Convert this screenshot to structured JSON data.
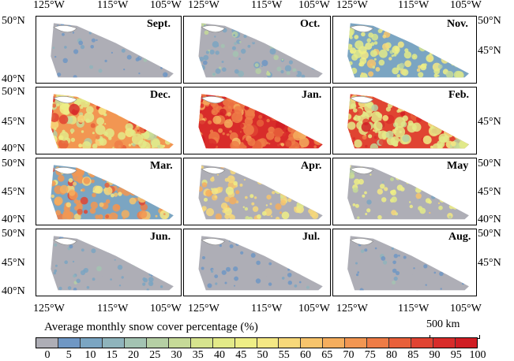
{
  "axes": {
    "top_lon_ticks": [
      "125°W",
      "115°W",
      "105°W"
    ],
    "bottom_lon_ticks": [
      "125°W",
      "115°W",
      "105°W"
    ],
    "lat_ticks": [
      "50°N",
      "45°N",
      "40°N"
    ]
  },
  "panels": [
    {
      "month": "Sept.",
      "dominant_class": 0,
      "texture_class": 1,
      "intensity": 0.05
    },
    {
      "month": "Oct.",
      "dominant_class": 0,
      "texture_class": 2,
      "intensity": 0.25
    },
    {
      "month": "Nov.",
      "dominant_class": 2,
      "texture_class": 8,
      "intensity": 0.55
    },
    {
      "month": "Dec.",
      "dominant_class": 14,
      "texture_class": 8,
      "intensity": 0.85
    },
    {
      "month": "Jan.",
      "dominant_class": 18,
      "texture_class": 15,
      "intensity": 0.95
    },
    {
      "month": "Feb.",
      "dominant_class": 17,
      "texture_class": 8,
      "intensity": 0.9
    },
    {
      "month": "Mar.",
      "dominant_class": 2,
      "texture_class": 14,
      "intensity": 0.6
    },
    {
      "month": "Apr.",
      "dominant_class": 0,
      "texture_class": 11,
      "intensity": 0.45
    },
    {
      "month": "May",
      "dominant_class": 0,
      "texture_class": 9,
      "intensity": 0.2
    },
    {
      "month": "Jun.",
      "dominant_class": 0,
      "texture_class": 2,
      "intensity": 0.1
    },
    {
      "month": "Jul.",
      "dominant_class": 0,
      "texture_class": 1,
      "intensity": 0.04
    },
    {
      "month": "Aug.",
      "dominant_class": 0,
      "texture_class": 1,
      "intensity": 0.03
    }
  ],
  "legend": {
    "title": "Average monthly snow cover percentage (%)",
    "ticks": [
      "0",
      "5",
      "10",
      "15",
      "20",
      "25",
      "30",
      "35",
      "40",
      "45",
      "50",
      "55",
      "60",
      "65",
      "70",
      "75",
      "80",
      "85",
      "90",
      "95",
      "100"
    ],
    "colors": [
      "#aeaeb6",
      "#6f97c4",
      "#7ba5c2",
      "#8fb4bc",
      "#a3c3b2",
      "#b5cfa4",
      "#c6da98",
      "#d6e48e",
      "#e3ea88",
      "#eeee86",
      "#f5e884",
      "#f7d87a",
      "#f7c46c",
      "#f5ae5e",
      "#f29652",
      "#ee7c46",
      "#e8603a",
      "#e04432",
      "#d82c2a",
      "#d01e24"
    ]
  },
  "scale_bar": {
    "label": "500 km"
  }
}
